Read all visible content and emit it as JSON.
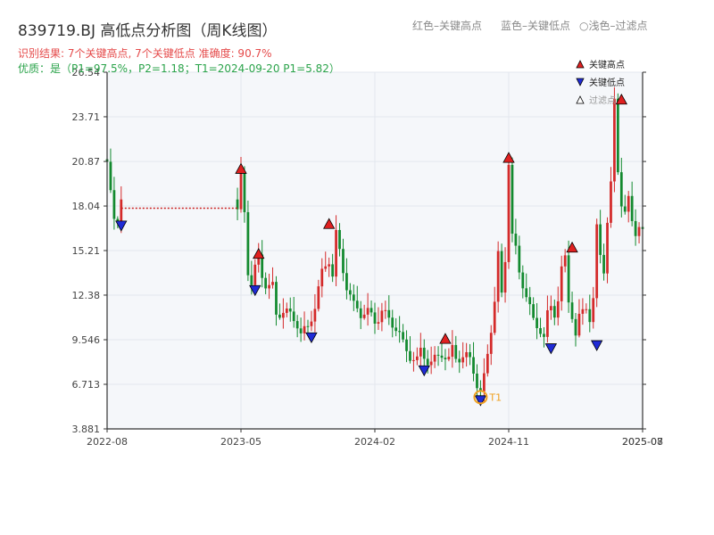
{
  "header": {
    "title": "839719.BJ 高低点分析图（周K线图）",
    "legend_red": "红色–关键高点",
    "legend_blue": "蓝色–关键低点",
    "legend_light": "○浅色–过滤点",
    "result_line": "识别结果: 7个关键高点, 7个关键低点   准确度: 90.7%",
    "quality_line": "优质：是（P1=97.5%，P2=1.18；T1=2024-09-20 P1=5.82）"
  },
  "chart_data": {
    "type": "candlestick",
    "title": "839719.BJ 高低点分析图（周K线图）",
    "ylim": [
      3.881,
      26.54
    ],
    "yticks": [
      "3.881",
      "6.713",
      "9.546",
      "12.38",
      "15.21",
      "18.04",
      "20.87",
      "23.71",
      "26.54"
    ],
    "xticks": [
      {
        "t": 0,
        "label": "2022-08"
      },
      {
        "t": 38,
        "label": "2023-05"
      },
      {
        "t": 76,
        "label": "2024-02"
      },
      {
        "t": 114,
        "label": "2024-11"
      },
      {
        "t": 152,
        "label": "2025-07"
      },
      {
        "t": 152,
        "label": "2025-08"
      }
    ],
    "grid": true,
    "legend_position": "top-right",
    "legend": [
      {
        "label": "关键高点",
        "marker": "triangle-up",
        "color": "#e02020"
      },
      {
        "label": "关键低点",
        "marker": "triangle-down",
        "color": "#1f2bd6"
      },
      {
        "label": "过滤点",
        "marker": "triangle-up-outline",
        "color": "#999999"
      }
    ],
    "colors": {
      "up": "#d42a2a",
      "down": "#138a2f",
      "high": "#e02020",
      "low": "#1f2bd6",
      "flat": "#c81e1e",
      "t1": "#f0a020"
    },
    "price_path": [
      [
        0,
        20.6
      ],
      [
        1,
        18.5
      ],
      [
        2,
        17.0
      ],
      [
        3,
        17.3
      ],
      [
        4,
        18.9
      ],
      [
        5,
        17.2
      ],
      [
        37,
        17.9
      ],
      [
        38,
        20.0
      ],
      [
        39,
        17.6
      ],
      [
        40,
        13.8
      ],
      [
        41,
        12.9
      ],
      [
        42,
        13.8
      ],
      [
        43,
        14.6
      ],
      [
        44,
        13.7
      ],
      [
        45,
        13.3
      ],
      [
        47,
        13.1
      ],
      [
        48,
        11.2
      ],
      [
        50,
        11.3
      ],
      [
        52,
        10.8
      ],
      [
        54,
        10.6
      ],
      [
        55,
        10.1
      ],
      [
        57,
        10.5
      ],
      [
        59,
        11.8
      ],
      [
        61,
        13.5
      ],
      [
        63,
        14.5
      ],
      [
        64,
        13.6
      ],
      [
        65,
        16.3
      ],
      [
        66,
        15.3
      ],
      [
        68,
        13.2
      ],
      [
        70,
        11.6
      ],
      [
        72,
        11.0
      ],
      [
        74,
        11.2
      ],
      [
        76,
        10.9
      ],
      [
        78,
        11.6
      ],
      [
        80,
        10.8
      ],
      [
        82,
        10.1
      ],
      [
        84,
        9.1
      ],
      [
        86,
        8.7
      ],
      [
        88,
        8.4
      ],
      [
        89,
        9.0
      ],
      [
        90,
        8.6
      ],
      [
        91,
        8.1
      ],
      [
        92,
        7.8
      ],
      [
        93,
        8.0
      ],
      [
        95,
        8.7
      ],
      [
        97,
        8.4
      ],
      [
        98,
        9.2
      ],
      [
        99,
        8.7
      ],
      [
        101,
        8.3
      ],
      [
        103,
        8.1
      ],
      [
        104,
        7.5
      ],
      [
        105,
        6.6
      ],
      [
        106,
        6.1
      ],
      [
        107,
        7.3
      ],
      [
        108,
        9.0
      ],
      [
        110,
        12.1
      ],
      [
        111,
        14.8
      ],
      [
        112,
        12.2
      ],
      [
        113,
        14.5
      ],
      [
        114,
        20.7
      ],
      [
        115,
        16.0
      ],
      [
        116,
        15.2
      ],
      [
        117,
        14.0
      ],
      [
        118,
        13.4
      ],
      [
        119,
        12.6
      ],
      [
        121,
        10.7
      ],
      [
        123,
        10.0
      ],
      [
        124,
        9.4
      ],
      [
        125,
        10.9
      ],
      [
        126,
        11.6
      ],
      [
        127,
        11.4
      ],
      [
        128,
        12.4
      ],
      [
        129,
        14.2
      ],
      [
        130,
        14.8
      ],
      [
        131,
        12.1
      ],
      [
        132,
        11.1
      ],
      [
        133,
        9.6
      ],
      [
        134,
        10.6
      ],
      [
        136,
        11.7
      ],
      [
        137,
        11.0
      ],
      [
        138,
        12.2
      ],
      [
        139,
        16.8
      ],
      [
        140,
        15.2
      ],
      [
        141,
        14.2
      ],
      [
        142,
        17.0
      ],
      [
        143,
        19.1
      ],
      [
        144,
        24.4
      ],
      [
        145,
        20.2
      ],
      [
        146,
        18.2
      ],
      [
        147,
        17.6
      ],
      [
        148,
        18.5
      ],
      [
        149,
        17.3
      ],
      [
        150,
        16.7
      ],
      [
        151,
        17.0
      ],
      [
        152,
        16.3
      ]
    ],
    "key_highs": [
      {
        "t": 38,
        "price": 20.0
      },
      {
        "t": 43,
        "price": 14.6
      },
      {
        "t": 63,
        "price": 16.5
      },
      {
        "t": 96,
        "price": 9.2
      },
      {
        "t": 114,
        "price": 20.7
      },
      {
        "t": 132,
        "price": 15.0
      },
      {
        "t": 146,
        "price": 24.4
      }
    ],
    "key_lows": [
      {
        "t": 4,
        "price": 17.2
      },
      {
        "t": 42,
        "price": 13.1
      },
      {
        "t": 58,
        "price": 10.1
      },
      {
        "t": 90,
        "price": 8.0
      },
      {
        "t": 106,
        "price": 6.1
      },
      {
        "t": 126,
        "price": 9.4
      },
      {
        "t": 139,
        "price": 9.6
      }
    ],
    "flat_segment": {
      "t_start": 4,
      "t_end": 37,
      "price": 17.9
    },
    "t1_marker": {
      "t": 106,
      "price": 5.9,
      "label": "T1"
    }
  }
}
